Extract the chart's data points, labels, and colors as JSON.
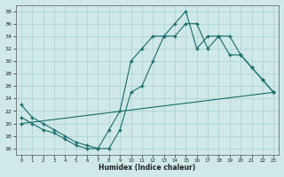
{
  "xlabel": "Humidex (Indice chaleur)",
  "bg_color": "#cfe8e8",
  "grid_color": "#b0d4d4",
  "line_color": "#1a6b6b",
  "xlim": [
    -0.5,
    23.5
  ],
  "ylim": [
    15,
    39
  ],
  "yticks": [
    16,
    18,
    20,
    22,
    24,
    26,
    28,
    30,
    32,
    34,
    36,
    38
  ],
  "xticks": [
    0,
    1,
    2,
    3,
    4,
    5,
    6,
    7,
    8,
    9,
    10,
    11,
    12,
    13,
    14,
    15,
    16,
    17,
    18,
    19,
    20,
    21,
    22,
    23
  ],
  "line1_x": [
    0,
    1,
    2,
    3,
    4,
    5,
    6,
    7,
    8,
    9,
    10,
    11,
    12,
    13,
    14,
    15,
    16,
    17,
    18,
    19,
    20,
    21,
    22,
    23
  ],
  "line1_y": [
    23,
    21,
    20,
    19,
    18,
    17,
    16.5,
    16,
    19,
    22,
    30,
    32,
    34,
    34,
    36,
    38,
    32,
    34,
    34,
    31,
    31,
    29,
    27,
    25
  ],
  "line2_x": [
    0,
    1,
    2,
    3,
    4,
    5,
    6,
    7,
    8,
    9,
    10,
    11,
    12,
    13,
    14,
    15,
    16,
    17,
    18,
    19,
    20,
    21,
    22,
    23
  ],
  "line2_y": [
    21,
    20,
    19,
    18.5,
    17.5,
    16.5,
    16,
    16,
    16,
    19,
    25,
    26,
    30,
    34,
    34,
    36,
    36,
    32,
    34,
    34,
    31,
    29,
    27,
    25
  ],
  "line3_x": [
    0,
    23
  ],
  "line3_y": [
    20,
    25
  ]
}
